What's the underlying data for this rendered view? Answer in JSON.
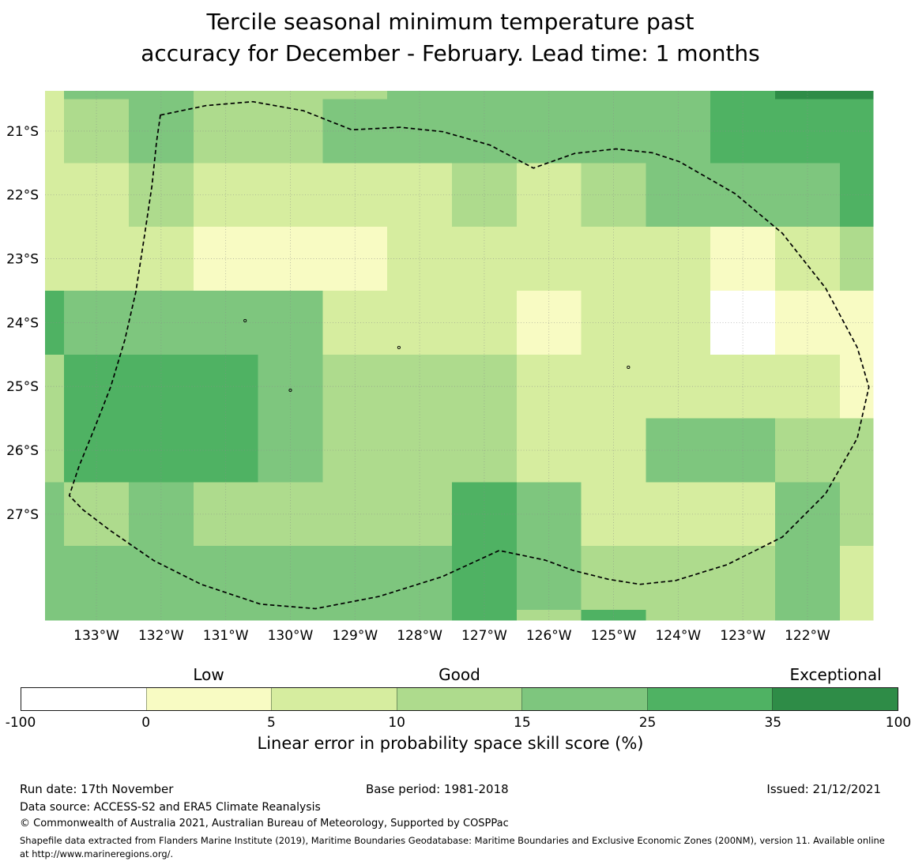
{
  "title": {
    "line1": "Tercile seasonal minimum temperature past",
    "line2": "accuracy for December - February. Lead time: 1 months"
  },
  "chart_data": {
    "type": "heatmap",
    "subtype": "geographic-skill-score-map",
    "title": "Tercile seasonal minimum temperature past accuracy for December - February. Lead time: 1 months",
    "grid_on": true,
    "lon_axis": {
      "left_deg_w": 133.795,
      "right_deg_w": 120.985,
      "ticks": [
        {
          "deg_w": 133,
          "label": "133°W"
        },
        {
          "deg_w": 132,
          "label": "132°W"
        },
        {
          "deg_w": 131,
          "label": "131°W"
        },
        {
          "deg_w": 130,
          "label": "130°W"
        },
        {
          "deg_w": 129,
          "label": "129°W"
        },
        {
          "deg_w": 128,
          "label": "128°W"
        },
        {
          "deg_w": 127,
          "label": "127°W"
        },
        {
          "deg_w": 126,
          "label": "126°W"
        },
        {
          "deg_w": 125,
          "label": "125°W"
        },
        {
          "deg_w": 124,
          "label": "124°W"
        },
        {
          "deg_w": 123,
          "label": "123°W"
        },
        {
          "deg_w": 122,
          "label": "122°W"
        }
      ]
    },
    "lat_axis": {
      "top_deg_s": 20.37,
      "bottom_deg_s": 28.66,
      "ticks": [
        {
          "deg_s": 21,
          "label": "21°S"
        },
        {
          "deg_s": 22,
          "label": "22°S"
        },
        {
          "deg_s": 23,
          "label": "23°S"
        },
        {
          "deg_s": 24,
          "label": "24°S"
        },
        {
          "deg_s": 25,
          "label": "25°S"
        },
        {
          "deg_s": 26,
          "label": "26°S"
        },
        {
          "deg_s": 27,
          "label": "27°S"
        }
      ]
    },
    "classes": [
      {
        "range": "-100 to 0",
        "color": "#ffffff"
      },
      {
        "range": "0 to 5",
        "color": "#f8fbc3"
      },
      {
        "range": "5 to 10",
        "color": "#d6ed9f"
      },
      {
        "range": "10 to 15",
        "color": "#aedb8d"
      },
      {
        "range": "15 to 25",
        "color": "#7ec67e"
      },
      {
        "range": "25 to 35",
        "color": "#4fb263"
      },
      {
        "range": "35 to 100",
        "color": "#2e8c47"
      }
    ],
    "grid": {
      "col_bounds_deg_w": [
        133.795,
        133.5,
        132.5,
        131.5,
        130.5,
        129.5,
        128.5,
        127.5,
        126.5,
        125.5,
        124.5,
        123.5,
        122.5,
        121.5,
        120.985
      ],
      "row_bounds_deg_s": [
        20.37,
        20.5,
        21.5,
        22.5,
        23.5,
        24.5,
        25.5,
        26.5,
        27.5,
        28.5,
        28.66
      ],
      "cell_class": [
        [
          2,
          4,
          4,
          3,
          3,
          3,
          4,
          4,
          4,
          4,
          4,
          5,
          6,
          6
        ],
        [
          2,
          3,
          4,
          3,
          3,
          4,
          4,
          4,
          4,
          4,
          4,
          5,
          5,
          5
        ],
        [
          2,
          2,
          3,
          2,
          2,
          2,
          2,
          3,
          2,
          3,
          4,
          4,
          4,
          5
        ],
        [
          2,
          2,
          2,
          1,
          1,
          1,
          2,
          2,
          2,
          2,
          2,
          1,
          2,
          3
        ],
        [
          5,
          4,
          4,
          4,
          4,
          2,
          2,
          2,
          1,
          2,
          2,
          0,
          1,
          1
        ],
        [
          3,
          5,
          5,
          5,
          4,
          3,
          3,
          3,
          2,
          2,
          2,
          2,
          2,
          1
        ],
        [
          3,
          5,
          5,
          5,
          4,
          3,
          3,
          3,
          2,
          2,
          4,
          4,
          3,
          3
        ],
        [
          4,
          3,
          4,
          3,
          3,
          3,
          3,
          5,
          4,
          2,
          2,
          2,
          4,
          3
        ],
        [
          4,
          4,
          4,
          4,
          4,
          4,
          4,
          5,
          4,
          3,
          3,
          3,
          4,
          2
        ],
        [
          4,
          4,
          4,
          4,
          4,
          4,
          4,
          5,
          3,
          5,
          3,
          3,
          4,
          2
        ]
      ]
    },
    "eez_boundary_deg": [
      [
        132.01,
        20.75
      ],
      [
        131.3,
        20.6
      ],
      [
        130.58,
        20.54
      ],
      [
        129.8,
        20.68
      ],
      [
        129.05,
        20.98
      ],
      [
        128.3,
        20.94
      ],
      [
        127.64,
        21.01
      ],
      [
        126.91,
        21.22
      ],
      [
        126.24,
        21.58
      ],
      [
        125.6,
        21.35
      ],
      [
        124.96,
        21.28
      ],
      [
        124.4,
        21.34
      ],
      [
        123.98,
        21.48
      ],
      [
        123.12,
        21.98
      ],
      [
        122.39,
        22.6
      ],
      [
        121.72,
        23.46
      ],
      [
        121.23,
        24.39
      ],
      [
        121.05,
        25.01
      ],
      [
        121.23,
        25.81
      ],
      [
        121.72,
        26.68
      ],
      [
        122.39,
        27.36
      ],
      [
        123.24,
        27.79
      ],
      [
        124.04,
        28.04
      ],
      [
        124.59,
        28.1
      ],
      [
        125.08,
        28.02
      ],
      [
        125.63,
        27.88
      ],
      [
        126.06,
        27.72
      ],
      [
        126.77,
        27.57
      ],
      [
        127.65,
        27.98
      ],
      [
        128.63,
        28.29
      ],
      [
        129.61,
        28.48
      ],
      [
        130.46,
        28.41
      ],
      [
        131.38,
        28.1
      ],
      [
        132.11,
        27.73
      ],
      [
        132.78,
        27.26
      ],
      [
        133.21,
        26.93
      ],
      [
        133.42,
        26.71
      ],
      [
        133.27,
        26.25
      ],
      [
        133.02,
        25.63
      ],
      [
        132.78,
        25.01
      ],
      [
        132.56,
        24.27
      ],
      [
        132.39,
        23.52
      ],
      [
        132.26,
        22.66
      ],
      [
        132.14,
        21.85
      ],
      [
        132.07,
        21.17
      ]
    ],
    "contour_marks_deg": [
      [
        130.7,
        23.97
      ],
      [
        128.32,
        24.39
      ],
      [
        124.77,
        24.7
      ],
      [
        130.0,
        25.06
      ]
    ],
    "colorbar": {
      "boundaries": [
        -100,
        0,
        5,
        10,
        15,
        25,
        35,
        100
      ],
      "tick_labels": [
        "-100",
        "0",
        "5",
        "10",
        "15",
        "25",
        "35",
        "100"
      ],
      "quality_labels": {
        "low": "Low",
        "good": "Good",
        "exceptional": "Exceptional"
      },
      "caption": "Linear error in probability space skill score (%)"
    }
  },
  "footer": {
    "run_date": "Run date: 17th November",
    "base_period": "Base period: 1981-2018",
    "issued": "Issued: 21/12/2021",
    "data_source": "Data source: ACCESS-S2 and ERA5 Climate Reanalysis",
    "copyright": "© Commonwealth of Australia 2021, Australian Bureau of Meteorology, Supported by COSPPac",
    "shapefile_note": "Shapefile data extracted from Flanders Marine Institute (2019), Maritime Boundaries Geodatabase: Maritime Boundaries and Exclusive Economic Zones (200NM), version 11. Available online at http://www.marineregions.org/."
  }
}
